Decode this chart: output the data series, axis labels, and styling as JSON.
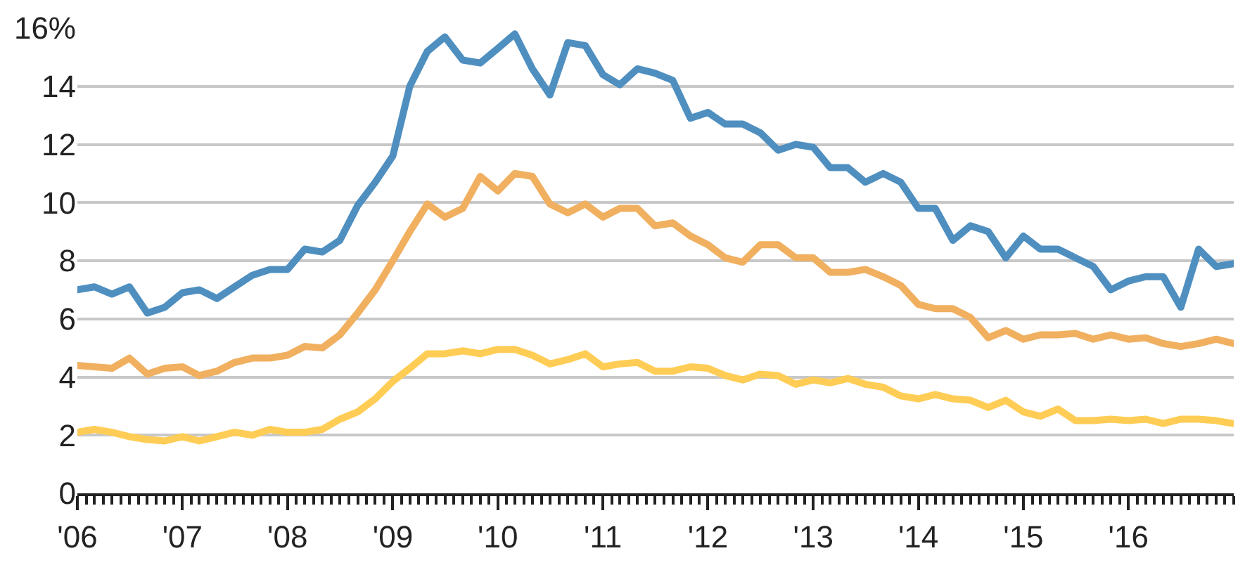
{
  "chart_data": {
    "type": "line",
    "x": [
      "2006-01",
      "2006-03",
      "2006-05",
      "2006-07",
      "2006-09",
      "2006-11",
      "2007-01",
      "2007-03",
      "2007-05",
      "2007-07",
      "2007-09",
      "2007-11",
      "2008-01",
      "2008-03",
      "2008-05",
      "2008-07",
      "2008-09",
      "2008-11",
      "2009-01",
      "2009-03",
      "2009-05",
      "2009-07",
      "2009-09",
      "2009-11",
      "2010-01",
      "2010-03",
      "2010-05",
      "2010-07",
      "2010-09",
      "2010-11",
      "2011-01",
      "2011-03",
      "2011-05",
      "2011-07",
      "2011-09",
      "2011-11",
      "2012-01",
      "2012-03",
      "2012-05",
      "2012-07",
      "2012-09",
      "2012-11",
      "2013-01",
      "2013-03",
      "2013-05",
      "2013-07",
      "2013-09",
      "2013-11",
      "2014-01",
      "2014-03",
      "2014-05",
      "2014-07",
      "2014-09",
      "2014-11",
      "2015-01",
      "2015-03",
      "2015-05",
      "2015-07",
      "2015-09",
      "2015-11",
      "2016-01",
      "2016-03",
      "2016-05",
      "2016-07",
      "2016-09",
      "2016-11",
      "2017-01"
    ],
    "series": [
      {
        "color": "#4f8fc0",
        "values": [
          7.0,
          7.1,
          6.85,
          7.1,
          6.2,
          6.4,
          6.9,
          7.0,
          6.7,
          7.1,
          7.5,
          7.7,
          7.7,
          8.4,
          8.3,
          8.7,
          9.9,
          10.7,
          11.6,
          14.0,
          15.2,
          15.7,
          14.9,
          14.8,
          15.3,
          15.8,
          14.6,
          13.7,
          15.5,
          15.4,
          14.4,
          14.05,
          14.6,
          14.45,
          14.2,
          12.9,
          13.1,
          12.7,
          12.7,
          12.4,
          11.8,
          12.0,
          11.9,
          11.2,
          11.2,
          10.7,
          11.0,
          10.7,
          9.8,
          9.8,
          8.7,
          9.2,
          9.0,
          8.1,
          8.85,
          8.4,
          8.4,
          8.1,
          7.8,
          7.0,
          7.3,
          7.45,
          7.45,
          6.4,
          8.4,
          7.8,
          7.9
        ]
      },
      {
        "color": "#f0b060",
        "values": [
          4.4,
          4.35,
          4.3,
          4.65,
          4.1,
          4.3,
          4.35,
          4.05,
          4.2,
          4.5,
          4.65,
          4.65,
          4.75,
          5.05,
          5.0,
          5.45,
          6.2,
          7.0,
          8.0,
          9.0,
          9.95,
          9.5,
          9.8,
          10.9,
          10.4,
          11.0,
          10.9,
          9.95,
          9.65,
          9.95,
          9.5,
          9.8,
          9.8,
          9.2,
          9.3,
          8.85,
          8.55,
          8.1,
          7.95,
          8.55,
          8.55,
          8.1,
          8.1,
          7.6,
          7.6,
          7.7,
          7.45,
          7.15,
          6.5,
          6.35,
          6.35,
          6.05,
          5.35,
          5.6,
          5.3,
          5.45,
          5.45,
          5.5,
          5.3,
          5.45,
          5.3,
          5.35,
          5.15,
          5.05,
          5.15,
          5.3,
          5.15
        ]
      },
      {
        "color": "#ffcd55",
        "values": [
          2.1,
          2.2,
          2.1,
          1.95,
          1.85,
          1.8,
          1.95,
          1.8,
          1.95,
          2.1,
          2.0,
          2.2,
          2.1,
          2.1,
          2.2,
          2.55,
          2.8,
          3.25,
          3.85,
          4.3,
          4.8,
          4.8,
          4.9,
          4.8,
          4.95,
          4.95,
          4.75,
          4.45,
          4.6,
          4.8,
          4.35,
          4.45,
          4.5,
          4.2,
          4.2,
          4.35,
          4.3,
          4.05,
          3.9,
          4.1,
          4.05,
          3.75,
          3.9,
          3.8,
          3.95,
          3.75,
          3.65,
          3.35,
          3.25,
          3.4,
          3.25,
          3.2,
          2.95,
          3.2,
          2.8,
          2.65,
          2.9,
          2.5,
          2.5,
          2.55,
          2.5,
          2.55,
          2.4,
          2.55,
          2.55,
          2.5,
          2.4
        ]
      }
    ],
    "xlim": [
      "2006-01-01",
      "2017-01-01"
    ],
    "xticks": [
      {
        "value": "2006-01-01",
        "label": "'06"
      },
      {
        "value": "2007-01-01",
        "label": "'07"
      },
      {
        "value": "2008-01-01",
        "label": "'08"
      },
      {
        "value": "2009-01-01",
        "label": "'09"
      },
      {
        "value": "2010-01-01",
        "label": "'10"
      },
      {
        "value": "2011-01-01",
        "label": "'11"
      },
      {
        "value": "2012-01-01",
        "label": "'12"
      },
      {
        "value": "2013-01-01",
        "label": "'13"
      },
      {
        "value": "2014-01-01",
        "label": "'14"
      },
      {
        "value": "2015-01-01",
        "label": "'15"
      },
      {
        "value": "2016-01-01",
        "label": "'16"
      }
    ],
    "ylim": [
      0,
      16
    ],
    "yticks": [
      0,
      2,
      4,
      6,
      8,
      10,
      12,
      14,
      {
        "value": 16,
        "label": "16%"
      }
    ],
    "grid": "y",
    "marker": "none",
    "line_style": "solid"
  }
}
